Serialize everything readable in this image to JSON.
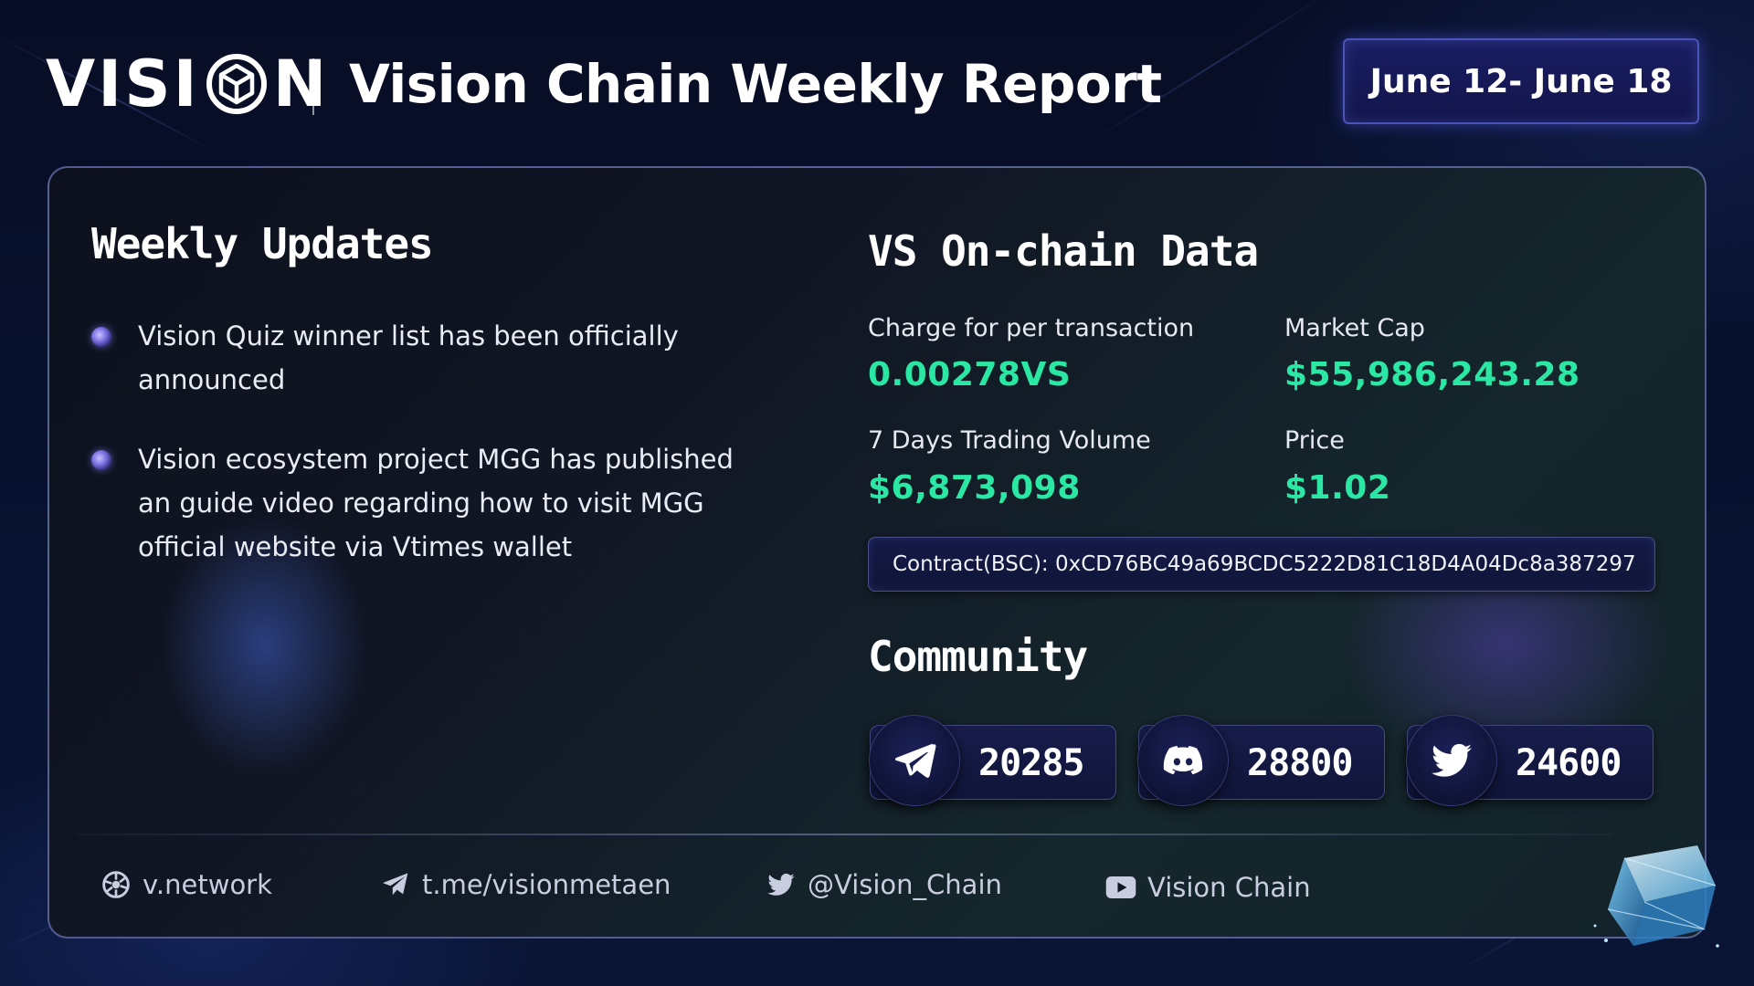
{
  "header": {
    "logo_text_left": "VISI",
    "logo_text_right": "N",
    "title": "Vision Chain Weekly Report",
    "date_range": "June 12- June 18"
  },
  "weekly_updates": {
    "title": "Weekly Updates",
    "items": [
      {
        "text": "Vision Quiz winner list has been officially announced"
      },
      {
        "text": "Vision ecosystem project MGG has published an guide video regarding how to visit MGG official website via Vtimes wallet"
      }
    ]
  },
  "onchain": {
    "title": "VS On-chain Data",
    "stats": [
      {
        "label": "Charge for per transaction",
        "value": "0.00278VS"
      },
      {
        "label": "Market Cap",
        "value": "$55,986,243.28"
      },
      {
        "label": "7 Days Trading Volume",
        "value": "$6,873,098"
      },
      {
        "label": "Price",
        "value": "$1.02"
      }
    ],
    "contract": "Contract(BSC): 0xCD76BC49a69BCDC5222D81C18D4A04Dc8a387297"
  },
  "community": {
    "title": "Community",
    "items": [
      {
        "icon": "telegram-icon",
        "count": "20285"
      },
      {
        "icon": "discord-icon",
        "count": "28800"
      },
      {
        "icon": "twitter-icon",
        "count": "24600"
      }
    ]
  },
  "footer": {
    "links": [
      {
        "icon": "globe-icon",
        "text": "v.network"
      },
      {
        "icon": "telegram-icon",
        "text": "t.me/visionmetaen"
      },
      {
        "icon": "twitter-icon",
        "text": "@Vision_Chain"
      },
      {
        "icon": "youtube-icon",
        "text": "Vision Chain"
      }
    ]
  },
  "colors": {
    "accent_green": "#2be7a4",
    "background": "#081331",
    "badge_border": "#4b55b8"
  }
}
